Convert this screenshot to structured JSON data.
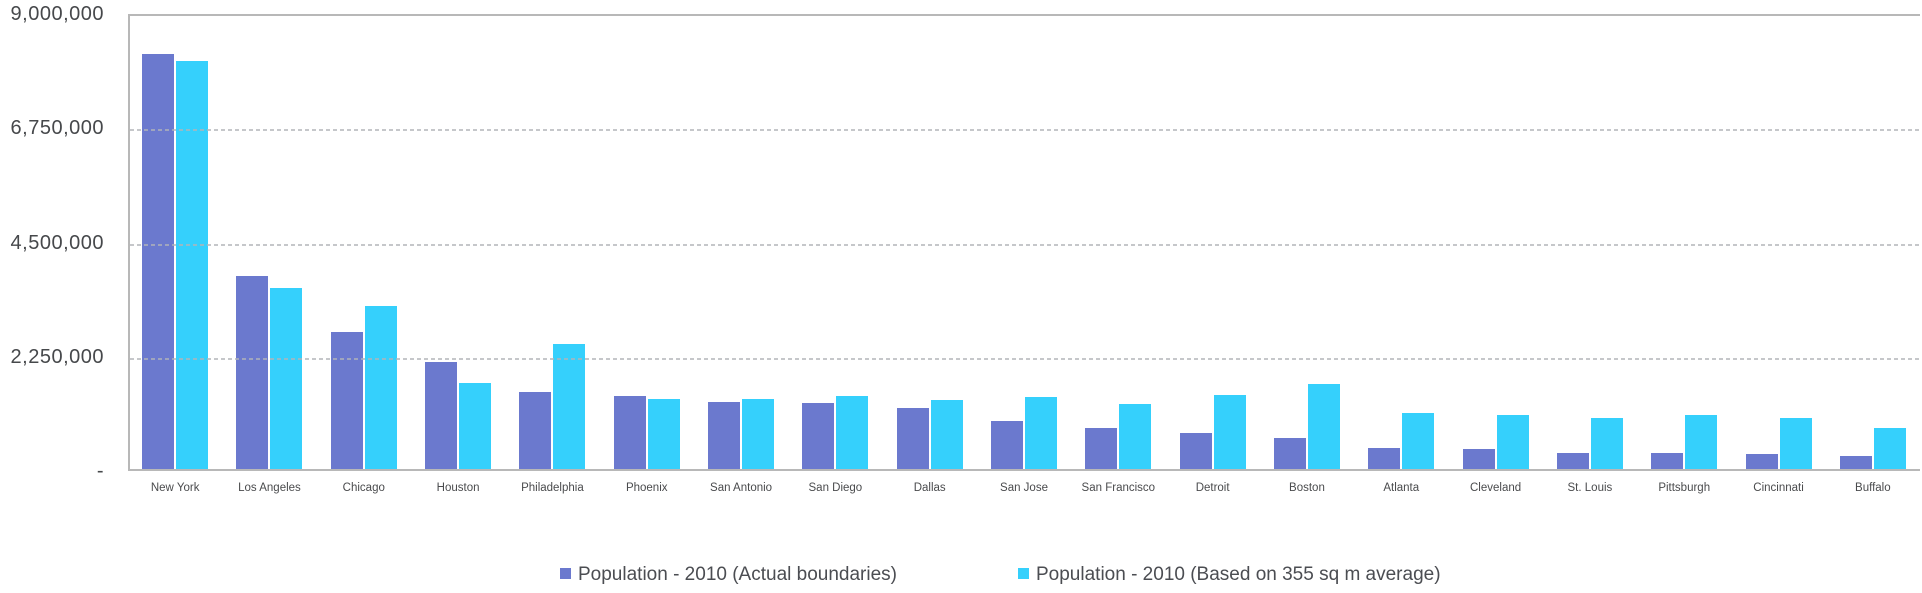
{
  "chart_data": {
    "type": "bar",
    "title": "",
    "xlabel": "",
    "ylabel": "",
    "ylim": [
      0,
      9000000
    ],
    "grid": "horizontal dashed gridlines, drawn over bars",
    "legend_position": "bottom",
    "plot_border": "gray solid line on top, left and bottom; open on right",
    "categories": [
      "New York",
      "Los Angeles",
      "Chicago",
      "Houston",
      "Philadelphia",
      "Phoenix",
      "San Antonio",
      "San Diego",
      "Dallas",
      "San Jose",
      "San Francisco",
      "Detroit",
      "Boston",
      "Atlanta",
      "Cleveland",
      "St. Louis",
      "Pittsburgh",
      "Cincinnati",
      "Buffalo"
    ],
    "yticks": [
      {
        "value": 9000000,
        "label": "9,000,000"
      },
      {
        "value": 6750000,
        "label": "6,750,000"
      },
      {
        "value": 4500000,
        "label": "4,500,000"
      },
      {
        "value": 2250000,
        "label": "2,250,000"
      },
      {
        "value": 0,
        "label": "-"
      }
    ],
    "series": [
      {
        "name": "Population - 2010 (Actual boundaries)",
        "color": "#6b79ce",
        "values": [
          8175133,
          3792621,
          2695598,
          2099451,
          1526006,
          1445632,
          1327407,
          1307402,
          1197816,
          945942,
          805235,
          713777,
          617594,
          420003,
          396815,
          319294,
          305704,
          296943,
          261310
        ]
      },
      {
        "name": "Population - 2010 (Based on 355 sq m average)",
        "color": "#35d0fc",
        "values": [
          8040000,
          3560000,
          3210000,
          1700000,
          2460000,
          1380000,
          1380000,
          1430000,
          1350000,
          1420000,
          1280000,
          1450000,
          1670000,
          1100000,
          1060000,
          1000000,
          1060000,
          1000000,
          810000
        ]
      }
    ]
  },
  "legend": {
    "items": [
      {
        "label": "Population - 2010 (Actual boundaries)"
      },
      {
        "label": "Population - 2010 (Based on 355 sq m average)"
      }
    ]
  },
  "colors": {
    "axis_line": "#b8b8b8",
    "gridline": "#b2b4b8",
    "y_label_text": "#46484b",
    "x_label_text": "#4a4b4d",
    "legend_text": "#4b4d52",
    "background": "#ffffff"
  }
}
